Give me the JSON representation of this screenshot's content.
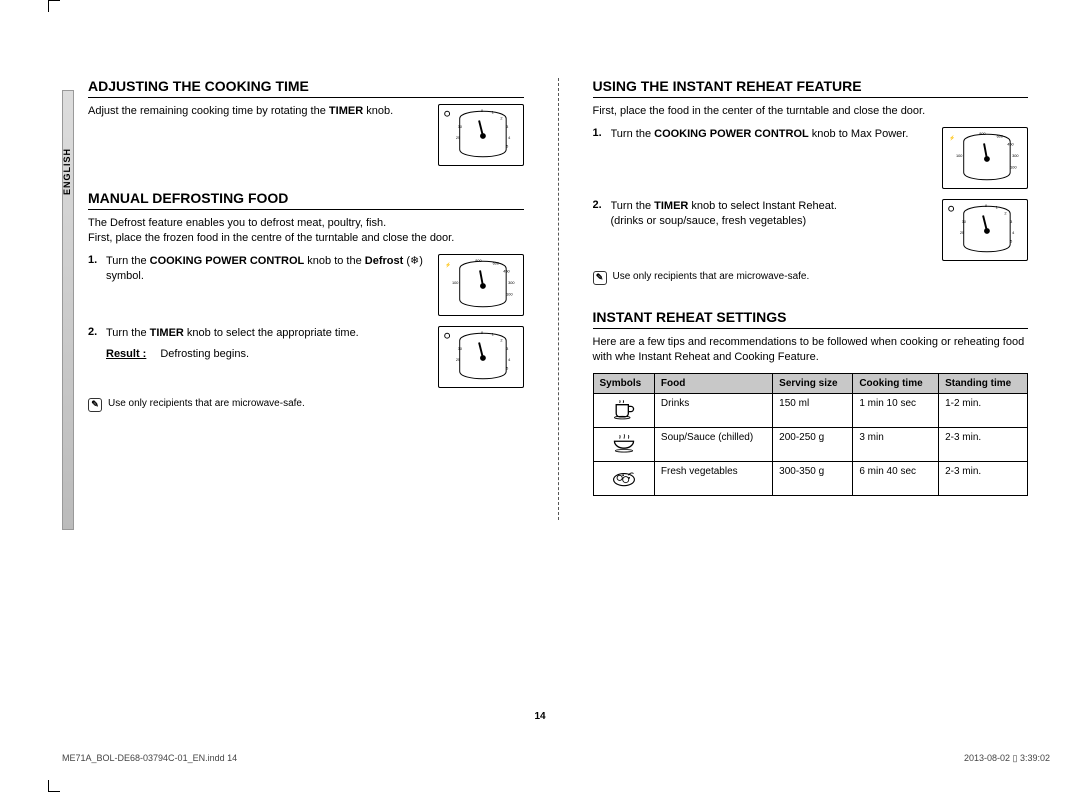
{
  "language_tab": "ENGLISH",
  "left": {
    "sec1": {
      "title": "Adjusting the cooking time",
      "intro": "Adjust the remaining cooking time by rotating the <b>TIMER</b> knob."
    },
    "sec2": {
      "title": "Manual defrosting food",
      "intro": "The Defrost feature enables you to defrost meat, poultry, fish.<br>First, place the frozen food in the centre of the turntable and close the door.",
      "step1": "Turn the <b>COOKING POWER CONTROL</b> knob to the <b>Defrost</b> (❄) symbol.",
      "step2": "Turn the <b>TIMER</b> knob to select the appropriate time.",
      "result_label": "Result :",
      "result_text": "Defrosting begins.",
      "note": "Use only recipients that are microwave-safe."
    }
  },
  "right": {
    "sec1": {
      "title": "Using the instant reheat feature",
      "intro": "First, place the food in the center of the turntable and close the door.",
      "step1": "Turn the <b>COOKING POWER CONTROL</b> knob to Max Power.",
      "step2": "Turn the <b>TIMER</b> knob to select Instant Reheat.<br>(drinks or soup/sauce, fresh vegetables)",
      "note": "Use only recipients that are microwave-safe."
    },
    "sec2": {
      "title": "Instant reheat settings",
      "intro": "Here are a few tips and recommendations to be followed when cooking or reheating food with whe Instant Reheat and Cooking Feature.",
      "headers": [
        "Symbols",
        "Food",
        "Serving size",
        "Cooking time",
        "Standing time"
      ],
      "rows": [
        {
          "symbol": "cup",
          "food": "Drinks",
          "serving": "150 ml",
          "cook": "1 min 10 sec",
          "stand": "1-2 min."
        },
        {
          "symbol": "bowl",
          "food": "Soup/Sauce (chilled)",
          "serving": "200-250 g",
          "cook": "3 min",
          "stand": "2-3 min."
        },
        {
          "symbol": "veg",
          "food": "Fresh vegetables",
          "serving": "300-350 g",
          "cook": "6 min 40 sec",
          "stand": "2-3 min."
        }
      ]
    }
  },
  "page_number": "14",
  "footer_left": "ME71A_BOL-DE68-03794C-01_EN.indd   14",
  "footer_right": "2013-08-02   ▯ 3:39:02",
  "dial_svgs": {
    "timer": "<svg viewBox='0 0 86 62'><g transform='translate(45,32)'><path d='M -24 -18 C -24 -28 24 -28 24 -18 L 24 14 C 24 24 -24 24 -24 14 Z' fill='none' stroke='#000' stroke-width='1'/><circle r='3' fill='#000'/><line x1='0' y1='0' x2='-4' y2='-16' stroke='#000' stroke-width='2'/><g font-size='4' fill='#000'><text x='-2' y='-25'>0</text><text x='9' y='-23'>1</text><text x='18' y='-17'>2</text><text x='24' y='-8'>3</text><text x='26' y='3'>4</text><text x='24' y='12'>5</text><text x='-28' y='3'>25</text><text x='-26' y='-8'>30</text></g></g><circle cx='8' cy='9' r='2.5' fill='none' stroke='#000'/></svg>",
    "power": "<svg viewBox='0 0 86 62'><g transform='translate(45,32)'><path d='M -24 -18 C -24 -28 24 -28 24 -18 L 24 14 C 24 24 -24 24 -24 14 Z' fill='none' stroke='#000' stroke-width='1'/><circle r='3' fill='#000'/><line x1='0' y1='0' x2='-3' y2='-16' stroke='#000' stroke-width='2'/><g font-size='4' fill='#000'><text x='-8' y='-25'>800</text><text x='10' y='-22'>600</text><text x='21' y='-14'>450</text><text x='26' y='-2'>300</text><text x='24' y='10'>100</text><text x='-32' y='-2'>100</text></g></g><text x='6' y='12' font-size='5'>⚡</text></svg>"
  },
  "symbol_svgs": {
    "cup": "<svg viewBox='0 0 30 24'><path d='M6 7 h14 v10 a4 4 0 0 1 -4 4 h-6 a4 4 0 0 1 -4 -4 Z M20 9 h3 a3 3 0 0 1 0 6 h-3' fill='none' stroke='#000' stroke-width='1.5'/><ellipse cx='13' cy='22' rx='9' ry='1.5' fill='none' stroke='#000'/><path d='M10 2 q1 1 0 3 M14 2 q1 1 0 3' fill='none' stroke='#000'/></svg>",
    "bowl": "<svg viewBox='0 0 30 24'><path d='M4 10 h22 a11 8 0 0 1 -22 0 Z' fill='none' stroke='#000' stroke-width='1.5'/><ellipse cx='15' cy='21' rx='10' ry='1.5' fill='none' stroke='#000'/><path d='M10 3 q1 1 0 4 M15 2 q1 1 0 5 M20 3 q1 1 0 4' fill='none' stroke='#000'/></svg>",
    "veg": "<svg viewBox='0 0 30 24'><ellipse cx='15' cy='15' rx='12' ry='7' fill='none' stroke='#000' stroke-width='1.3'/><circle cx='10' cy='13' r='3' fill='none' stroke='#000'/><circle cx='17' cy='15' r='3.5' fill='none' stroke='#000'/><path d='M20 10 q3 -4 6 -2' fill='none' stroke='#000'/><circle cx='14' cy='10' r='1' fill='#000'/><circle cx='21' cy='13' r='1' fill='#000'/></svg>"
  }
}
